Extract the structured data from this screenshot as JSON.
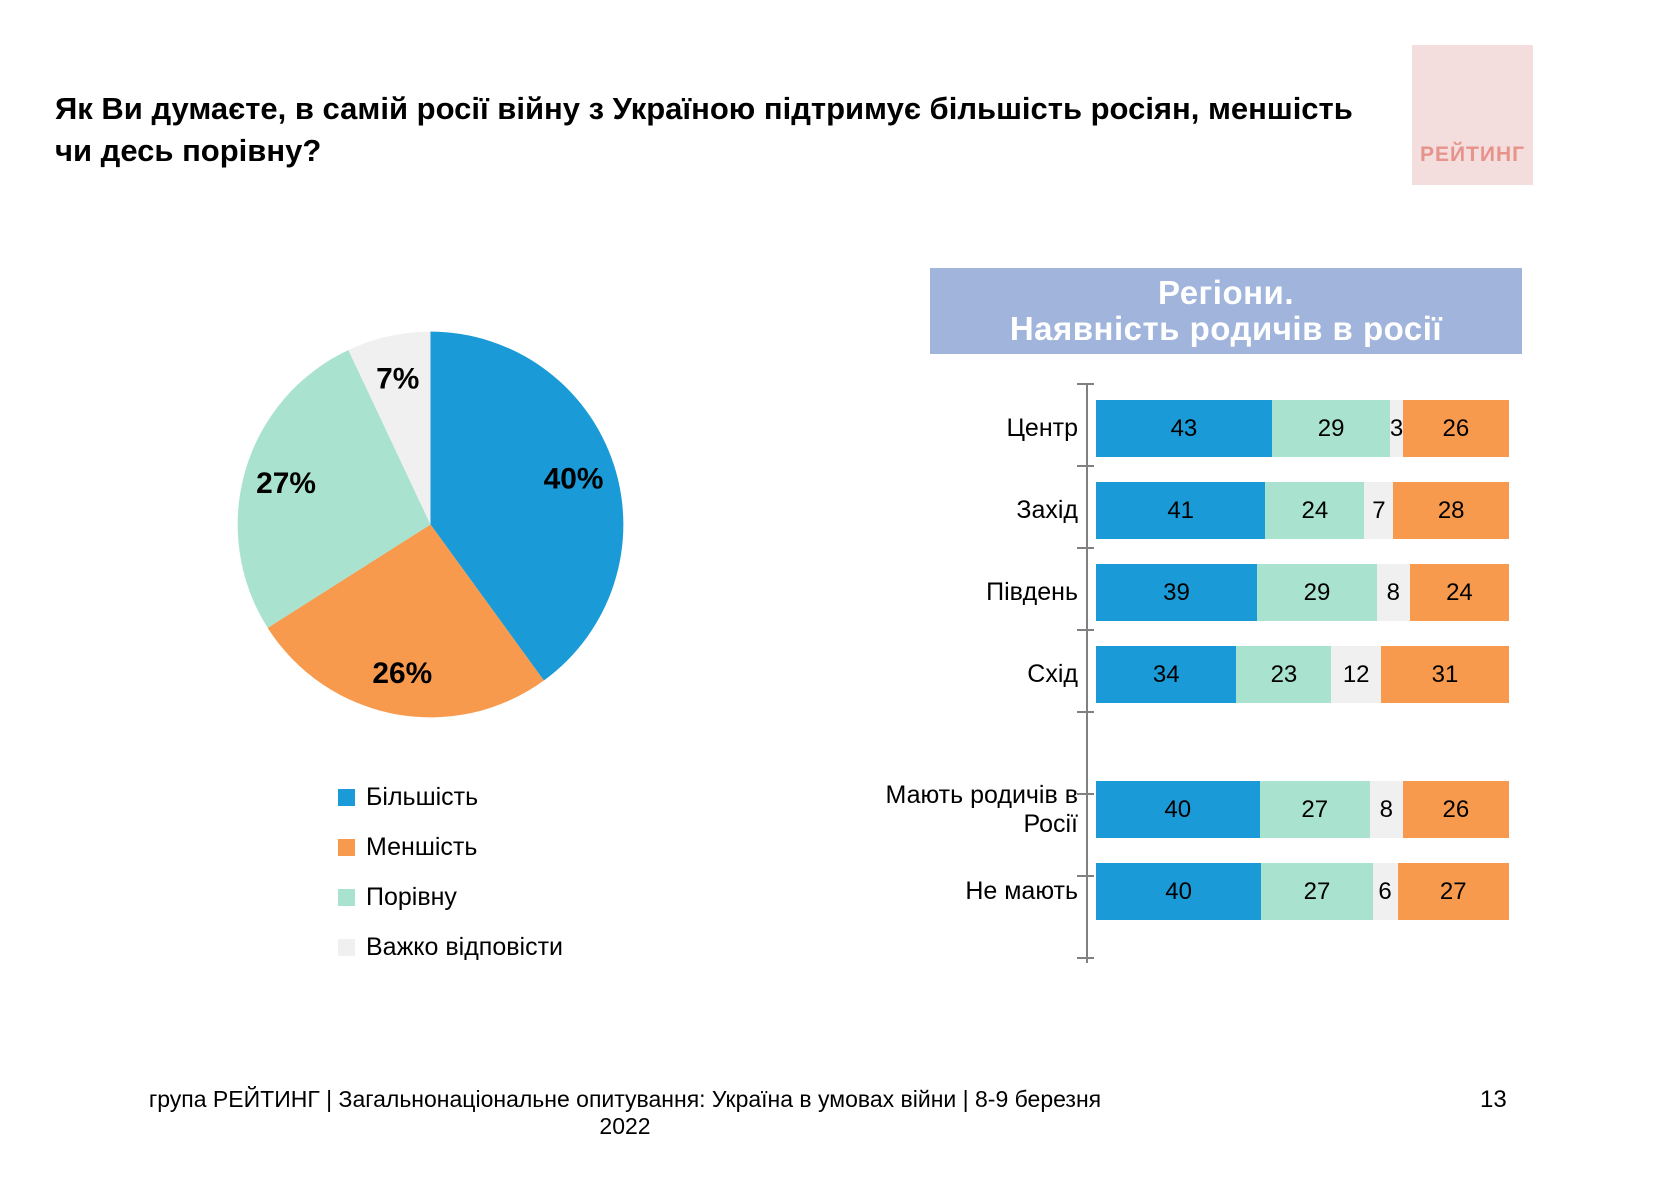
{
  "page": {
    "title": "Як Ви думаєте, в самій росії війну з Україною підтримує більшість росіян, меншість чи десь порівну?",
    "logo": "РЕЙТИНГ",
    "footer": "група РЕЙТИНГ | Загальнонаціональне опитування: Україна в умовах війни | 8-9 березня 2022",
    "page_number": "13"
  },
  "colors": {
    "majority_blue": "#1a9ad6",
    "minority_orange": "#f79a4d",
    "equal_teal": "#a9e2cf",
    "hard_gray": "#f0f0f0",
    "header_box": "#a0b4dc",
    "logo_bg": "#f4dedd",
    "logo_text": "#e8928c"
  },
  "chart_data": [
    {
      "type": "pie",
      "title": "",
      "labels": [
        "Більшість",
        "Меншість",
        "Порівну",
        "Важко відповісти"
      ],
      "values": [
        40,
        26,
        27,
        7
      ],
      "colors": [
        "#1a9ad6",
        "#f79a4d",
        "#a9e2cf",
        "#f0f0f0"
      ],
      "value_suffix": "%",
      "start_angle_deg": 0,
      "direction": "clockwise",
      "legend_position": "bottom-left"
    },
    {
      "type": "bar",
      "orientation": "horizontal",
      "stacked": true,
      "header_lines": [
        "Регіони.",
        "Наявність родичів в росії"
      ],
      "series_names": [
        "Більшість",
        "Порівну",
        "Важко відповісти",
        "Меншість"
      ],
      "colors": [
        "#1a9ad6",
        "#a9e2cf",
        "#f0f0f0",
        "#f79a4d"
      ],
      "groups": [
        {
          "rows": [
            {
              "label": "Центр",
              "values": [
                43,
                29,
                3,
                26
              ]
            },
            {
              "label": "Захід",
              "values": [
                41,
                24,
                7,
                28
              ]
            },
            {
              "label": "Південь",
              "values": [
                39,
                29,
                8,
                24
              ]
            },
            {
              "label": "Схід",
              "values": [
                34,
                23,
                12,
                31
              ]
            }
          ]
        },
        {
          "rows": [
            {
              "label": "Мають родичів в Росії",
              "values": [
                40,
                27,
                8,
                26
              ]
            },
            {
              "label": "Не мають",
              "values": [
                40,
                27,
                6,
                27
              ]
            }
          ]
        }
      ],
      "xlim": [
        0,
        100
      ],
      "grid": false
    }
  ]
}
